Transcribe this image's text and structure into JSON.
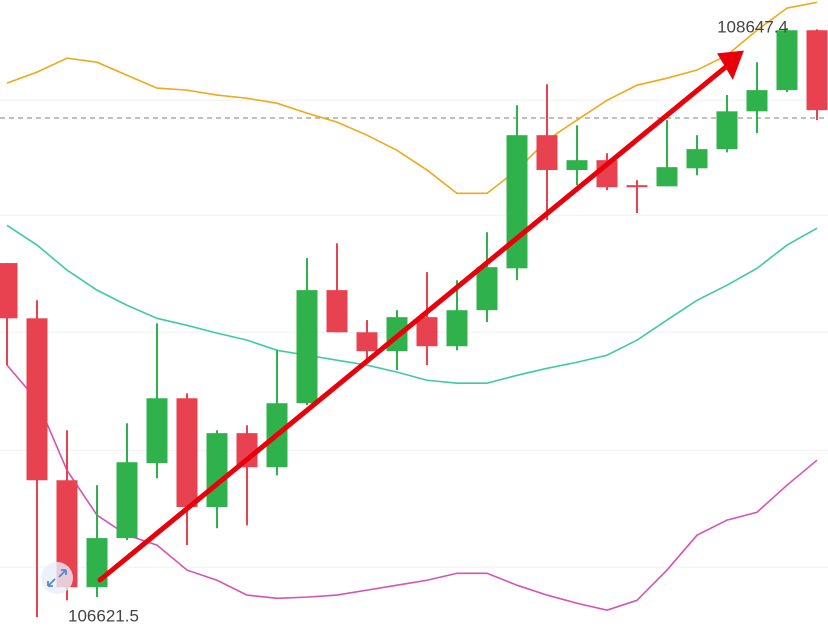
{
  "chart_data": {
    "type": "candlestick",
    "ylim": [
      106570,
      108744
    ],
    "grid_values": [
      108399,
      108004,
      107601,
      107195,
      106793
    ],
    "reference_line": 108338,
    "up_color": "#2fb14c",
    "down_color": "#e8414f",
    "open": [
      107839,
      107649,
      107092,
      106724,
      106893,
      107151,
      107374,
      107000,
      107254,
      107137,
      107357,
      107746,
      107601,
      107536,
      107653,
      107553,
      107677,
      107821,
      108279,
      108159,
      108193,
      108107,
      108103,
      108165,
      108231,
      108361,
      108434,
      108640
    ],
    "close": [
      107649,
      107092,
      106724,
      106893,
      107154,
      107374,
      107000,
      107254,
      107137,
      107357,
      107746,
      107601,
      107536,
      107653,
      107553,
      107677,
      107825,
      108279,
      108159,
      108193,
      108100,
      108100,
      108169,
      108231,
      108361,
      108434,
      108640,
      108365
    ],
    "high": [
      107839,
      107711,
      107264,
      107075,
      107288,
      107632,
      107391,
      107264,
      107281,
      107539,
      107856,
      107907,
      107643,
      107677,
      107808,
      107780,
      107945,
      108382,
      108454,
      108313,
      108217,
      108124,
      108331,
      108279,
      108417,
      108530,
      108647.4,
      108643
    ],
    "low": [
      107488,
      106621.5,
      106679,
      106690,
      106886,
      107099,
      106869,
      106927,
      106937,
      107109,
      107350,
      107601,
      107505,
      107471,
      107488,
      107539,
      107636,
      107780,
      107987,
      108107,
      108090,
      108011,
      108103,
      108141,
      108220,
      108286,
      108427,
      108331
    ],
    "series": [
      {
        "color": "#f0a81c",
        "values": [
          108458,
          108496,
          108544,
          108530,
          108485,
          108441,
          108434,
          108417,
          108406,
          108389,
          108355,
          108324,
          108279,
          108227,
          108159,
          108079,
          108079,
          108159,
          108262,
          108331,
          108399,
          108451,
          108475,
          108503,
          108554,
          108640,
          108716,
          108736
        ]
      },
      {
        "color": "#3fcaa4",
        "values": [
          107969,
          107901,
          107815,
          107746,
          107694,
          107649,
          107625,
          107598,
          107574,
          107539,
          107522,
          107505,
          107488,
          107464,
          107436,
          107426,
          107426,
          107453,
          107477,
          107498,
          107522,
          107574,
          107643,
          107711,
          107763,
          107821,
          107901,
          107959
        ]
      },
      {
        "color": "#d653b2",
        "values": [
          107488,
          107367,
          107126,
          106972,
          106903,
          106869,
          106783,
          106748,
          106697,
          106686,
          106690,
          106697,
          106714,
          106731,
          106748,
          106772,
          106772,
          106731,
          106697,
          106669,
          106645,
          106679,
          106783,
          106903,
          106955,
          106982,
          107075,
          107161
        ]
      }
    ],
    "annotations": [
      108647.4,
      106621.5
    ]
  }
}
